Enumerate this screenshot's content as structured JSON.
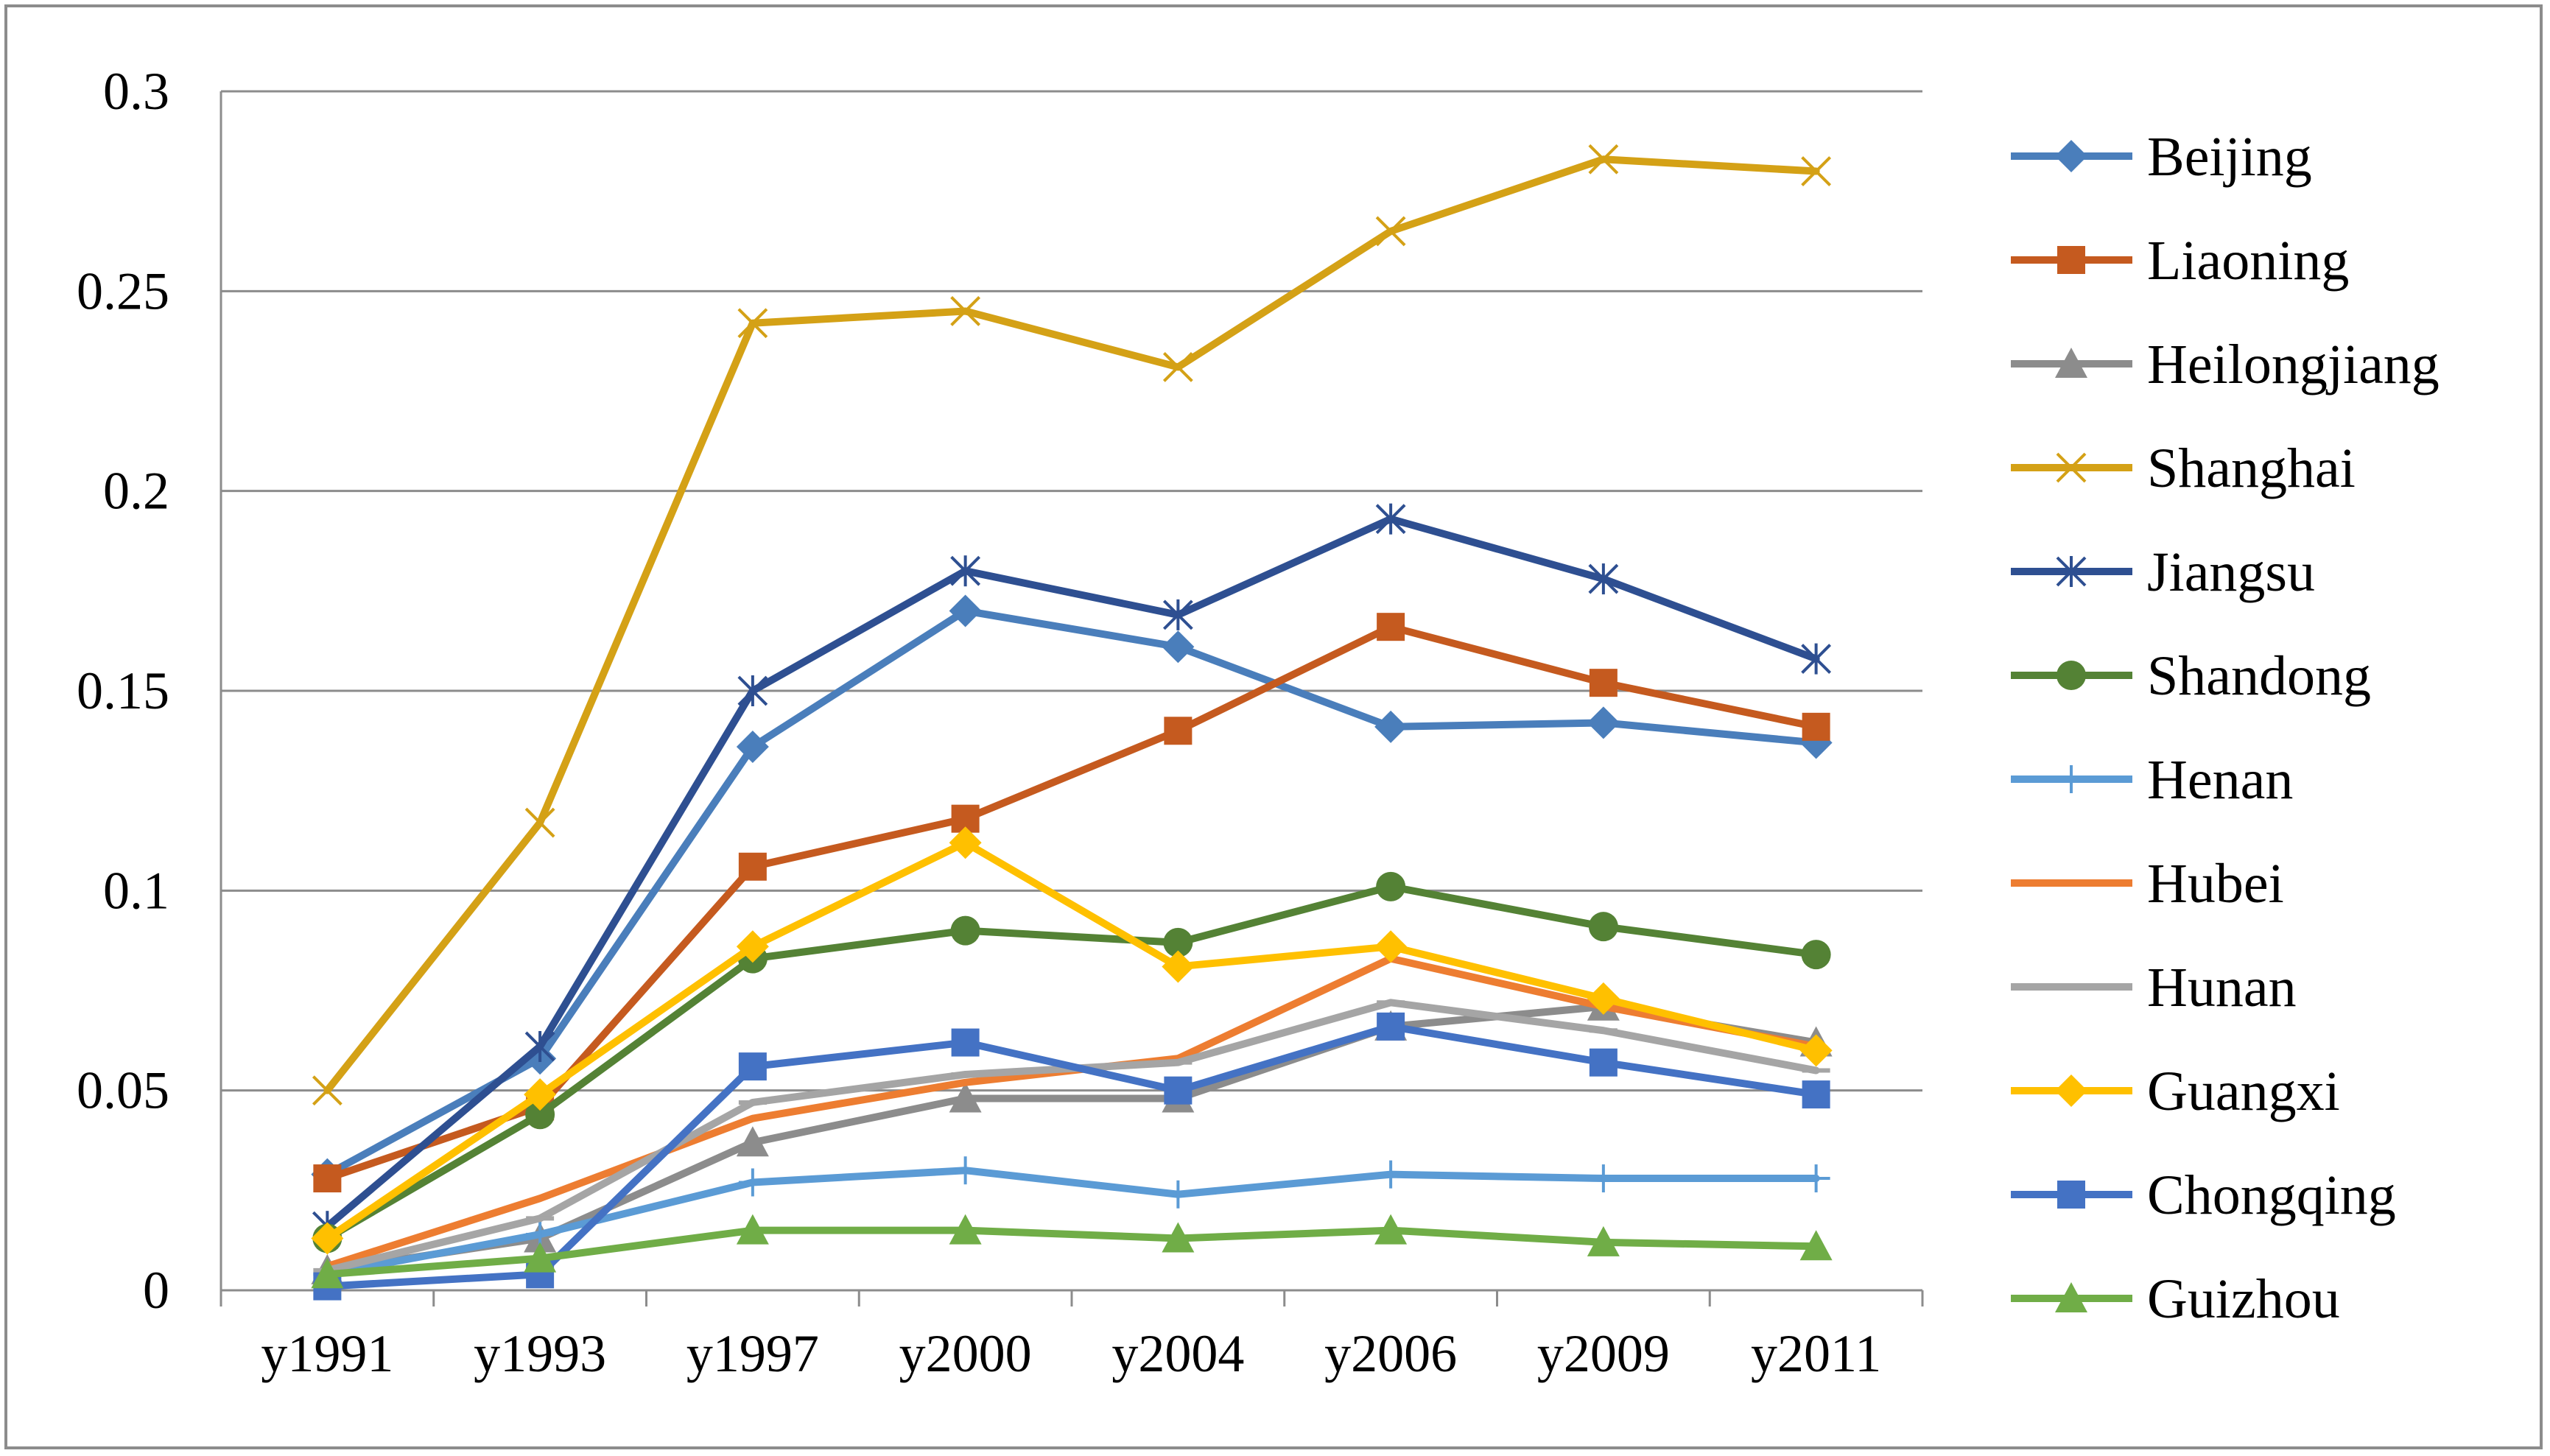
{
  "chart_data": {
    "type": "line",
    "title": "",
    "xlabel": "",
    "ylabel": "",
    "categories": [
      "y1991",
      "y1993",
      "y1997",
      "y2000",
      "y2004",
      "y2006",
      "y2009",
      "y2011"
    ],
    "ylim": [
      0,
      0.3
    ],
    "yticks": [
      0,
      0.05,
      0.1,
      0.15,
      0.2,
      0.25,
      0.3
    ],
    "ytick_labels": [
      "0",
      "0.05",
      "0.1",
      "0.15",
      "0.2",
      "0.25",
      "0.3"
    ],
    "grid": true,
    "legend_position": "right",
    "series": [
      {
        "name": "Beijing",
        "color": "#4A7EBB",
        "marker": "diamond",
        "values": [
          0.029,
          0.058,
          0.136,
          0.17,
          0.161,
          0.141,
          0.142,
          0.137
        ]
      },
      {
        "name": "Liaoning",
        "color": "#C55A1F",
        "marker": "square",
        "values": [
          0.028,
          0.046,
          0.106,
          0.118,
          0.14,
          0.166,
          0.152,
          0.141
        ]
      },
      {
        "name": "Heilongjiang",
        "color": "#8C8C8C",
        "marker": "triangle",
        "values": [
          0.005,
          0.013,
          0.037,
          0.048,
          0.048,
          0.066,
          0.071,
          0.062
        ]
      },
      {
        "name": "Shanghai",
        "color": "#D4A116",
        "marker": "x",
        "values": [
          0.05,
          0.117,
          0.242,
          0.245,
          0.231,
          0.265,
          0.283,
          0.28
        ]
      },
      {
        "name": "Jiangsu",
        "color": "#2E4F91",
        "marker": "star",
        "values": [
          0.016,
          0.061,
          0.15,
          0.18,
          0.169,
          0.193,
          0.178,
          0.158
        ]
      },
      {
        "name": "Shandong",
        "color": "#548235",
        "marker": "circle",
        "values": [
          0.013,
          0.044,
          0.083,
          0.09,
          0.087,
          0.101,
          0.091,
          0.084
        ]
      },
      {
        "name": "Henan",
        "color": "#5B9BD5",
        "marker": "plus",
        "values": [
          0.004,
          0.014,
          0.027,
          0.03,
          0.024,
          0.029,
          0.028,
          0.028
        ]
      },
      {
        "name": "Hubei",
        "color": "#ED7D31",
        "marker": "none",
        "values": [
          0.006,
          0.023,
          0.043,
          0.052,
          0.058,
          0.083,
          0.071,
          0.061
        ]
      },
      {
        "name": "Hunan",
        "color": "#A5A5A5",
        "marker": "dash",
        "values": [
          0.005,
          0.018,
          0.047,
          0.054,
          0.057,
          0.072,
          0.065,
          0.055
        ]
      },
      {
        "name": "Guangxi",
        "color": "#FFC000",
        "marker": "diamond",
        "values": [
          0.013,
          0.049,
          0.086,
          0.112,
          0.081,
          0.086,
          0.073,
          0.06
        ]
      },
      {
        "name": "Chongqing",
        "color": "#4472C4",
        "marker": "square",
        "values": [
          0.001,
          0.004,
          0.056,
          0.062,
          0.05,
          0.066,
          0.057,
          0.049
        ]
      },
      {
        "name": "Guizhou",
        "color": "#70AD47",
        "marker": "triangle",
        "values": [
          0.004,
          0.008,
          0.015,
          0.015,
          0.013,
          0.015,
          0.012,
          0.011
        ]
      }
    ]
  }
}
